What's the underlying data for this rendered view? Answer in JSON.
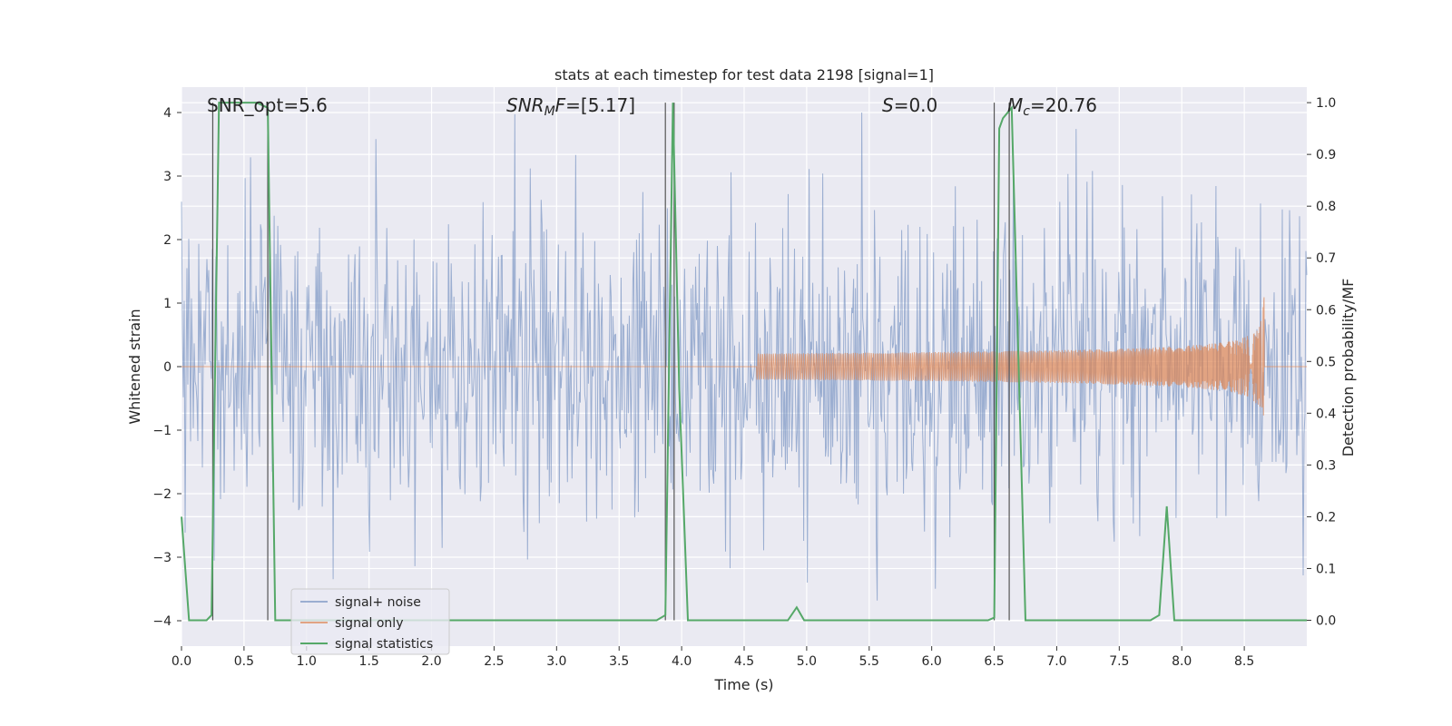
{
  "chart_data": {
    "type": "line",
    "title": "stats at each timestep for test data 2198 [signal=1]",
    "xlabel": "Time (s)",
    "ylabel_left": "Whitened strain",
    "ylabel_right": "Detection probability/MF",
    "xlim": [
      0.0,
      9.0
    ],
    "ylim_left": [
      -4.4,
      4.4
    ],
    "ylim_right": [
      -0.05,
      1.03
    ],
    "xticks": [
      "0.0",
      "0.5",
      "1.0",
      "1.5",
      "2.0",
      "2.5",
      "3.0",
      "3.5",
      "4.0",
      "4.5",
      "5.0",
      "5.5",
      "6.0",
      "6.5",
      "7.0",
      "7.5",
      "8.0",
      "8.5"
    ],
    "yticks_left": [
      "4",
      "3",
      "2",
      "1",
      "0",
      "−1",
      "−2",
      "−3",
      "−4"
    ],
    "yticks_right": [
      "1.0",
      "0.9",
      "0.8",
      "0.7",
      "0.6",
      "0.5",
      "0.4",
      "0.3",
      "0.2",
      "0.1",
      "0.0"
    ],
    "grid": true,
    "annotations": {
      "snr_opt": "SNR_opt=5.6",
      "snr_mf": "=[5.17]",
      "snr_mf_symbol": "SNR",
      "snr_mf_sub": "M",
      "snr_mf_tail": "F",
      "s_value": "=0.0",
      "s_symbol": "S",
      "mc_value": "=20.76",
      "mc_symbol": "M",
      "mc_sub": "c"
    },
    "legend": {
      "position": "lower-left",
      "entries": [
        "signal+ noise",
        "signal only",
        "signal statistics"
      ]
    },
    "colors": {
      "noise": "#4c72b0",
      "signal": "#dd8452",
      "stats": "#55a868",
      "vlines": "#555555",
      "axes_bg": "#eaeaf2",
      "grid": "#ffffff"
    },
    "series": [
      {
        "name": "signal statistics",
        "axis": "right",
        "x": [
          0.0,
          0.06,
          0.2,
          0.24,
          0.3,
          0.4,
          0.5,
          0.6,
          0.69,
          0.75,
          0.8,
          1.0,
          1.5,
          2.0,
          2.5,
          3.0,
          3.5,
          3.8,
          3.87,
          3.93,
          3.98,
          4.05,
          4.2,
          4.5,
          4.85,
          4.92,
          4.98,
          5.2,
          5.5,
          6.0,
          6.45,
          6.5,
          6.54,
          6.57,
          6.64,
          6.75,
          7.0,
          7.5,
          7.75,
          7.82,
          7.88,
          7.94,
          8.0,
          8.5,
          9.0
        ],
        "values": [
          0.2,
          0.0,
          0.0,
          0.01,
          1.0,
          1.0,
          1.0,
          1.0,
          0.99,
          0.0,
          0.0,
          0.0,
          0.0,
          0.0,
          0.0,
          0.0,
          0.0,
          0.0,
          0.01,
          1.0,
          0.45,
          0.0,
          0.0,
          0.0,
          0.0,
          0.025,
          0.0,
          0.0,
          0.0,
          0.0,
          0.0,
          0.005,
          0.95,
          0.97,
          0.99,
          0.0,
          0.0,
          0.0,
          0.0,
          0.01,
          0.22,
          0.0,
          0.0,
          0.0,
          0.0
        ]
      },
      {
        "name": "signal only",
        "axis": "left",
        "description_values": {
          "chirp_start_time": 4.6,
          "chirp_end_time": 8.66,
          "peak_amplitude": 1.25
        }
      },
      {
        "name": "signal+ noise",
        "axis": "left",
        "description_values": {
          "typical_range": [
            -2.5,
            3.5
          ],
          "extreme_range": [
            -3.9,
            4.0
          ]
        }
      }
    ],
    "vlines": [
      0.25,
      0.69,
      3.87,
      3.94,
      6.5,
      6.62
    ]
  }
}
